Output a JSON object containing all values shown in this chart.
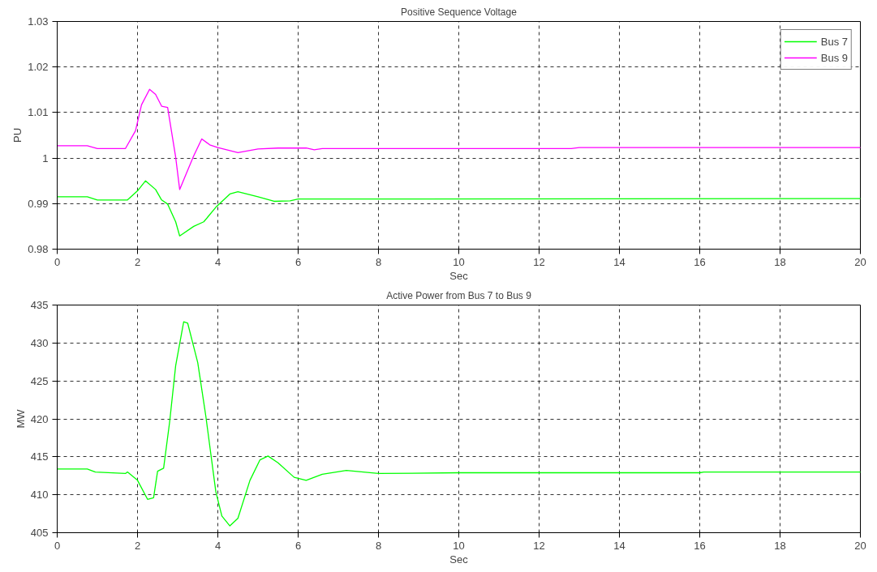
{
  "chart_data": [
    {
      "type": "line",
      "title": "Positive Sequence Voltage",
      "xlabel": "Sec",
      "ylabel": "PU",
      "xlim": [
        0,
        20
      ],
      "ylim": [
        0.98,
        1.03
      ],
      "xticks": [
        0,
        2,
        4,
        6,
        8,
        10,
        12,
        14,
        16,
        18,
        20
      ],
      "yticks": [
        0.98,
        0.99,
        1,
        1.01,
        1.02,
        1.03
      ],
      "grid": true,
      "legend": "top right",
      "series": [
        {
          "name": "Bus 7",
          "color": "#00ff00",
          "x": [
            0,
            0.75,
            1.0,
            1.75,
            2.0,
            2.2,
            2.45,
            2.6,
            2.75,
            2.95,
            3.05,
            3.4,
            3.65,
            3.95,
            4.3,
            4.5,
            5.0,
            5.4,
            5.8,
            6.0,
            7,
            20
          ],
          "values": [
            0.9915,
            0.9915,
            0.9908,
            0.9908,
            0.9928,
            0.995,
            0.9931,
            0.9908,
            0.9899,
            0.986,
            0.9829,
            0.985,
            0.986,
            0.9892,
            0.9921,
            0.9926,
            0.9915,
            0.9905,
            0.9906,
            0.991,
            0.991,
            0.9911
          ]
        },
        {
          "name": "Bus 9",
          "color": "#ff00ff",
          "x": [
            0,
            0.75,
            1.0,
            1.7,
            1.95,
            2.1,
            2.3,
            2.45,
            2.6,
            2.75,
            2.95,
            3.05,
            3.2,
            3.4,
            3.6,
            3.8,
            4.0,
            4.5,
            5.0,
            5.5,
            6.2,
            6.4,
            6.6,
            12.8,
            13,
            20
          ],
          "values": [
            1.0027,
            1.0027,
            1.0021,
            1.0021,
            1.006,
            1.0117,
            1.0151,
            1.014,
            1.0114,
            1.0111,
            1.0002,
            0.9931,
            0.9963,
            1.0005,
            1.0042,
            1.0029,
            1.0023,
            1.0012,
            1.002,
            1.0022,
            1.0022,
            1.0018,
            1.0021,
            1.0021,
            1.0023,
            1.0023
          ]
        }
      ]
    },
    {
      "type": "line",
      "title": "Active Power from Bus 7 to Bus 9",
      "xlabel": "Sec",
      "ylabel": "MW",
      "xlim": [
        0,
        20
      ],
      "ylim": [
        405,
        435
      ],
      "xticks": [
        0,
        2,
        4,
        6,
        8,
        10,
        12,
        14,
        16,
        18,
        20
      ],
      "yticks": [
        405,
        410,
        415,
        420,
        425,
        430,
        435
      ],
      "grid": true,
      "series": [
        {
          "color": "#00ff00",
          "x": [
            0,
            0.75,
            0.95,
            1.7,
            1.75,
            2.0,
            2.25,
            2.4,
            2.5,
            2.65,
            2.8,
            2.95,
            3.15,
            3.25,
            3.5,
            3.7,
            3.95,
            4.1,
            4.3,
            4.5,
            4.8,
            5.05,
            5.25,
            5.5,
            5.9,
            6.2,
            6.6,
            7.2,
            8,
            10,
            16,
            16.1,
            20
          ],
          "values": [
            413.4,
            413.4,
            413.0,
            412.8,
            413.0,
            411.9,
            409.4,
            409.6,
            413.1,
            413.5,
            419.6,
            427.0,
            432.8,
            432.6,
            427.4,
            420.4,
            410.4,
            407.2,
            405.9,
            406.9,
            411.9,
            414.6,
            415.1,
            414.2,
            412.3,
            411.9,
            412.7,
            413.2,
            412.8,
            412.9,
            412.9,
            413.0,
            413.0
          ]
        }
      ]
    }
  ]
}
